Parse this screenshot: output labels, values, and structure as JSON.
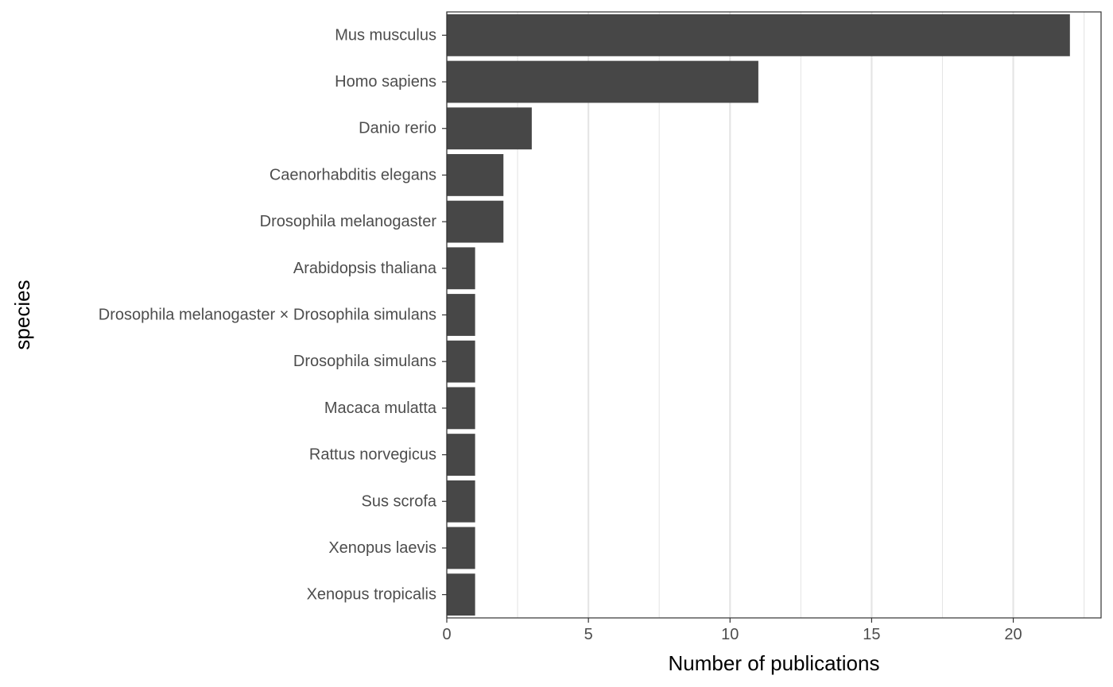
{
  "chart_data": {
    "type": "bar",
    "orientation": "horizontal",
    "categories": [
      "Mus musculus",
      "Homo sapiens",
      "Danio rerio",
      "Caenorhabditis elegans",
      "Drosophila melanogaster",
      "Arabidopsis thaliana",
      "Drosophila melanogaster × Drosophila simulans",
      "Drosophila simulans",
      "Macaca mulatta",
      "Rattus norvegicus",
      "Sus scrofa",
      "Xenopus laevis",
      "Xenopus tropicalis"
    ],
    "values": [
      22,
      11,
      3,
      2,
      2,
      1,
      1,
      1,
      1,
      1,
      1,
      1,
      1
    ],
    "xlabel": "Number of publications",
    "ylabel": "species",
    "xlim": [
      0,
      23.1
    ],
    "xticks": [
      "0",
      "5",
      "10",
      "15",
      "20"
    ],
    "grid": "vertical",
    "legend": "none",
    "bar_color": "#474747",
    "grid_color": "#e5e5e5",
    "panel_border_color": "#333333"
  }
}
